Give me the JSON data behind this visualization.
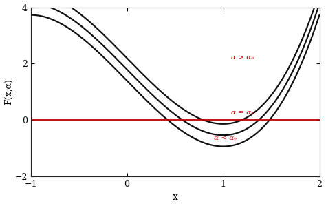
{
  "title": "",
  "xlabel": "x",
  "ylabel": "F(x,α)",
  "xlim": [
    -1,
    2
  ],
  "ylim": [
    -2,
    4
  ],
  "xticks": [
    -1,
    0,
    1,
    2
  ],
  "yticks": [
    -2,
    0,
    2,
    4
  ],
  "background_color": "#ffffff",
  "line_color": "#111111",
  "hline_color": "#bb0000",
  "label_color": "#bb0000",
  "label_alpha_gt": "α > αₑ",
  "label_alpha_eq": "α = αₑ",
  "label_alpha_lt": "α < αₑ",
  "offsets": [
    0.4,
    0.0,
    -0.4
  ],
  "curve_scale": 3.5,
  "curve_lw": 1.6
}
